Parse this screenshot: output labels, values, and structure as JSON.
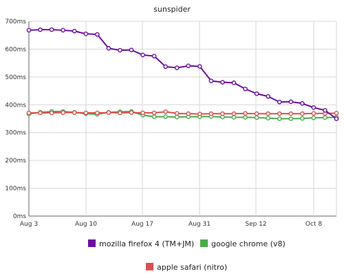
{
  "chart_data": {
    "type": "line",
    "title": "sunspider",
    "xlabel": "",
    "ylabel": "",
    "x_ticks": [
      "Aug 3",
      "Aug 10",
      "Aug 17",
      "Aug 31",
      "Sep 12",
      "Oct 8"
    ],
    "y_ticks": [
      "0ms",
      "100ms",
      "200ms",
      "300ms",
      "400ms",
      "500ms",
      "600ms",
      "700ms"
    ],
    "ylim": [
      0,
      700
    ],
    "grid": true,
    "legend_position": "bottom",
    "series": [
      {
        "name": "mozilla firefox 4 (TM+JM)",
        "color": "#6a0d9f",
        "values": [
          668,
          670,
          670,
          668,
          665,
          655,
          653,
          603,
          596,
          597,
          579,
          575,
          537,
          533,
          540,
          538,
          486,
          481,
          479,
          457,
          440,
          430,
          410,
          411,
          405,
          390,
          380,
          350
        ]
      },
      {
        "name": "google chrome (v8)",
        "color": "#4aaa4a",
        "values": [
          367,
          373,
          376,
          376,
          373,
          368,
          366,
          373,
          375,
          376,
          363,
          357,
          357,
          356,
          357,
          357,
          358,
          356,
          355,
          355,
          354,
          352,
          350,
          350,
          351,
          353,
          354,
          355
        ]
      },
      {
        "name": "apple safari (nitro)",
        "color": "#d9504f",
        "values": [
          371,
          371,
          371,
          372,
          372,
          371,
          371,
          372,
          371,
          372,
          371,
          371,
          375,
          369,
          368,
          367,
          368,
          368,
          368,
          369,
          368,
          368,
          368,
          368,
          368,
          369,
          369,
          370
        ]
      }
    ]
  }
}
